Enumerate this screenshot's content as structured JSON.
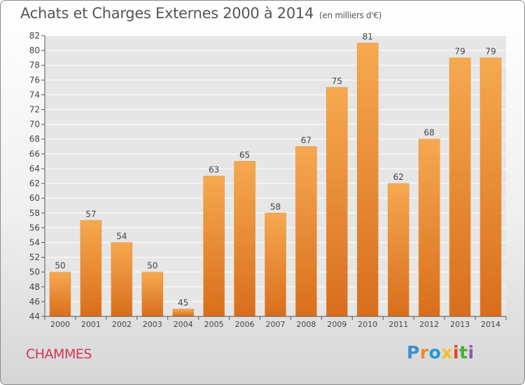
{
  "header": {
    "title": "Achats et Charges Externes 2000 à 2014",
    "unit": "(en milliers d'€)"
  },
  "footer": {
    "commune": "CHAMMES"
  },
  "logo": {
    "text": "Proxiti",
    "letter_colors": [
      "#3a8fd0",
      "#f0892b",
      "#1b9bd6",
      "#f0c323",
      "#e8452c",
      "#49ad36",
      "#8e5bb0"
    ]
  },
  "colors": {
    "bar_light": "#f6a950",
    "bar_dark": "#d96e1c",
    "axis": "#555555",
    "grid": "#ffffff"
  },
  "chart_data": {
    "type": "bar",
    "title": "Achats et Charges Externes 2000 à 2014",
    "categories": [
      "2000",
      "2001",
      "2002",
      "2003",
      "2004",
      "2005",
      "2006",
      "2007",
      "2008",
      "2009",
      "2010",
      "2011",
      "2012",
      "2013",
      "2014"
    ],
    "values": [
      50,
      57,
      54,
      50,
      45,
      63,
      65,
      58,
      67,
      75,
      81,
      62,
      68,
      79,
      79
    ],
    "ylim": [
      44,
      82
    ],
    "yticks": [
      44,
      46,
      48,
      50,
      52,
      54,
      56,
      58,
      60,
      62,
      64,
      66,
      68,
      70,
      72,
      74,
      76,
      78,
      80,
      82
    ],
    "grid": true,
    "data_labels": true
  }
}
